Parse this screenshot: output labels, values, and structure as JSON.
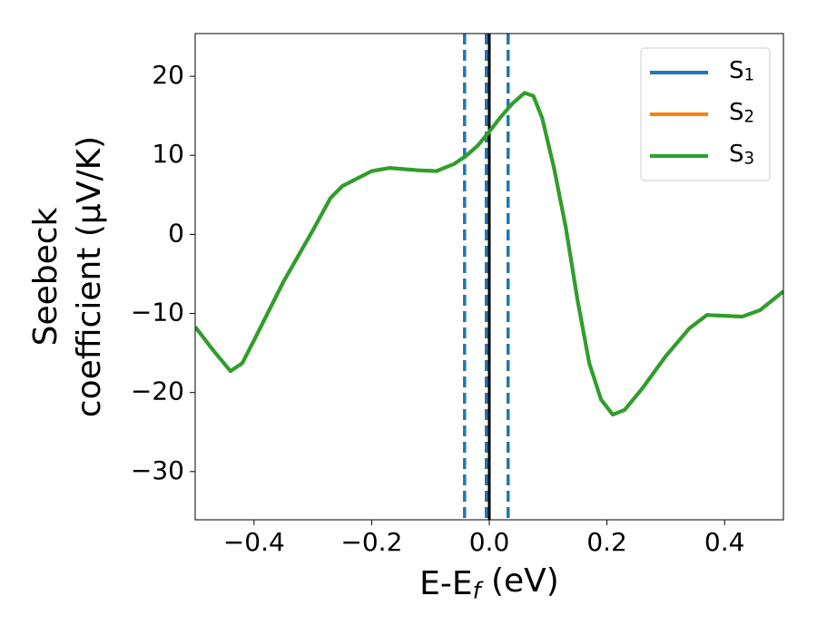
{
  "chart_data": {
    "type": "line",
    "xlabel": "E-Ef (eV)",
    "ylabel": [
      "Seebeck",
      "coefficient  (μV/K)"
    ],
    "x": [
      -0.5,
      -0.47,
      -0.44,
      -0.42,
      -0.4,
      -0.35,
      -0.3,
      -0.27,
      -0.25,
      -0.2,
      -0.17,
      -0.12,
      -0.09,
      -0.06,
      -0.04,
      -0.02,
      0,
      0.02,
      0.04,
      0.06,
      0.075,
      0.09,
      0.11,
      0.13,
      0.15,
      0.17,
      0.19,
      0.21,
      0.23,
      0.26,
      0.3,
      0.34,
      0.37,
      0.4,
      0.43,
      0.46,
      0.5
    ],
    "series": [
      {
        "name": "S1",
        "color": "#1f77b4",
        "values": [
          -11.7,
          -14.6,
          -17.3,
          -16.3,
          -13.4,
          -6.0,
          0.5,
          4.6,
          6.1,
          8.0,
          8.4,
          8.1,
          8.0,
          8.9,
          9.9,
          11.2,
          13.0,
          14.9,
          16.6,
          17.9,
          17.5,
          14.7,
          8.4,
          0.9,
          -8.3,
          -16.3,
          -20.9,
          -22.8,
          -22.2,
          -19.5,
          -15.4,
          -11.9,
          -10.2,
          -10.3,
          -10.4,
          -9.6,
          -7.2
        ]
      },
      {
        "name": "S2",
        "color": "#ff7f0e",
        "values": [
          -11.7,
          -14.6,
          -17.3,
          -16.3,
          -13.4,
          -6.0,
          0.5,
          4.6,
          6.1,
          8.0,
          8.4,
          8.1,
          8.0,
          8.9,
          9.9,
          11.2,
          13.0,
          14.9,
          16.6,
          17.9,
          17.5,
          14.7,
          8.4,
          0.9,
          -8.3,
          -16.3,
          -20.9,
          -22.8,
          -22.2,
          -19.5,
          -15.4,
          -11.9,
          -10.2,
          -10.3,
          -10.4,
          -9.6,
          -7.2
        ]
      },
      {
        "name": "S3",
        "color": "#2ca02c",
        "values": [
          -11.7,
          -14.6,
          -17.3,
          -16.3,
          -13.4,
          -6.0,
          0.5,
          4.6,
          6.1,
          8.0,
          8.4,
          8.1,
          8.0,
          8.9,
          9.9,
          11.2,
          13.0,
          14.9,
          16.6,
          17.9,
          17.5,
          14.7,
          8.4,
          0.9,
          -8.3,
          -16.3,
          -20.9,
          -22.8,
          -22.2,
          -19.5,
          -15.4,
          -11.9,
          -10.2,
          -10.3,
          -10.4,
          -9.6,
          -7.2
        ]
      }
    ],
    "vlines": [
      -0.042,
      -0.005,
      0.032
    ],
    "vline_color": "#1f77b4",
    "zero_line": 0,
    "zero_line_color": "#000000",
    "xlim": [
      -0.5,
      0.5
    ],
    "xticks": [
      {
        "value": -0.4,
        "label": "−0.4"
      },
      {
        "value": -0.2,
        "label": "−0.2"
      },
      {
        "value": 0,
        "label": "0.0"
      },
      0.2,
      0.4
    ],
    "ylim": [
      -36.1,
      25.4
    ],
    "yticks": [
      {
        "value": -30,
        "label": "−30"
      },
      {
        "value": -20,
        "label": "−20"
      },
      {
        "value": -10,
        "label": "−10"
      },
      0,
      10,
      20
    ],
    "legend": "upper right",
    "grid": false
  }
}
